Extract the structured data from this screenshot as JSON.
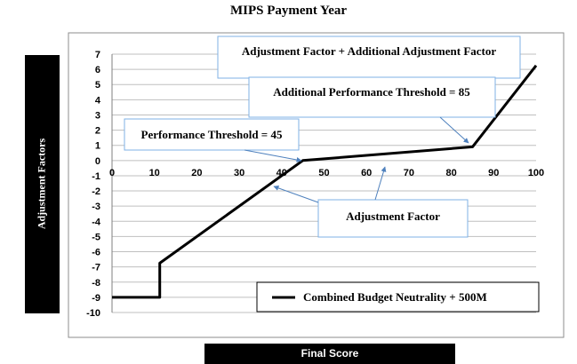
{
  "chart_data": {
    "type": "line",
    "title": "MIPS Payment Year",
    "xlabel": "Final Score",
    "ylabel": "Adjustment  Factors",
    "xlim": [
      0,
      100
    ],
    "ylim": [
      -10,
      7
    ],
    "x_ticks": [
      0,
      10,
      20,
      30,
      40,
      50,
      60,
      70,
      80,
      90,
      100
    ],
    "y_ticks": [
      7,
      6,
      5,
      4,
      3,
      2,
      1,
      0,
      -1,
      -2,
      -3,
      -4,
      -5,
      -6,
      -7,
      -8,
      -9,
      -10
    ],
    "grid": "horizontal",
    "legend_position": "bottom-right",
    "series": [
      {
        "name": "Combined Budget Neutrality + 500M",
        "color": "#000000",
        "x": [
          0,
          11.25,
          11.25,
          45,
          85,
          100
        ],
        "y": [
          -9,
          -9,
          -6.75,
          0,
          0.9,
          6.25
        ]
      }
    ],
    "annotations": [
      "Adjustment Factor + Additional Adjustment Factor",
      "Additional Performance Threshold = 85",
      "Performance Threshold = 45",
      "Adjustment Factor"
    ]
  },
  "colors": {
    "grid": "#bfbfbf",
    "callout_border": "#7fb2e5",
    "arrow": "#4f81bd"
  }
}
